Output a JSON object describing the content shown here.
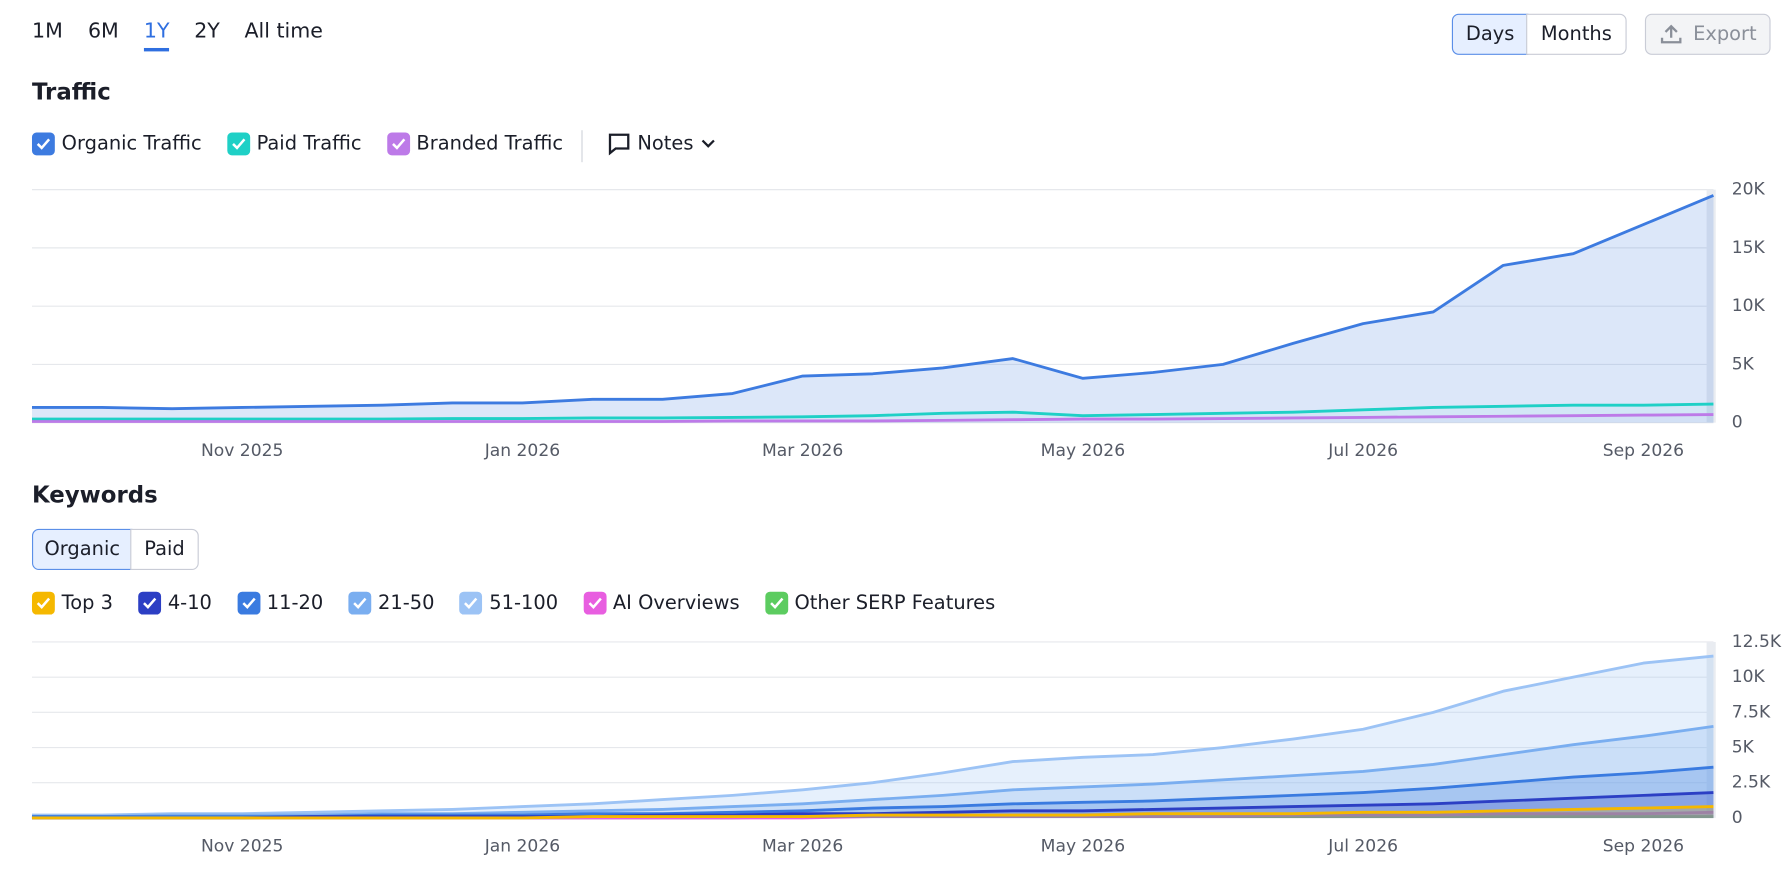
{
  "range_tabs": [
    "1M",
    "6M",
    "1Y",
    "2Y",
    "All time"
  ],
  "active_range_index": 2,
  "granularity": [
    "Days",
    "Months"
  ],
  "active_granularity_index": 0,
  "export": "Export",
  "traffic": {
    "title": "Traffic",
    "notes": "Notes"
  },
  "keywords": {
    "title": "Keywords",
    "tabs": [
      "Organic",
      "Paid"
    ],
    "active_tab_index": 0
  },
  "chart_data": [
    {
      "type": "area",
      "categories": [
        null,
        null,
        null,
        "Nov 2025",
        null,
        null,
        null,
        "Jan 2026",
        null,
        null,
        null,
        "Mar 2026",
        null,
        null,
        null,
        "May 2026",
        null,
        null,
        null,
        "Jul 2026",
        null,
        null,
        null,
        "Sep 2026",
        null
      ],
      "series": [
        {
          "name": "Organic Traffic",
          "color": "#3d7be0",
          "values": [
            1300,
            1300,
            1200,
            1300,
            1400,
            1500,
            1700,
            1700,
            2000,
            2000,
            2500,
            4000,
            4200,
            4700,
            5500,
            3800,
            4300,
            5000,
            6800,
            8500,
            9500,
            13500,
            14500,
            17000,
            19500
          ]
        },
        {
          "name": "Paid Traffic",
          "color": "#1fd0c6",
          "values": [
            300,
            300,
            300,
            300,
            300,
            300,
            350,
            350,
            400,
            400,
            450,
            500,
            600,
            800,
            900,
            600,
            700,
            800,
            900,
            1100,
            1300,
            1400,
            1500,
            1500,
            1600
          ]
        },
        {
          "name": "Branded Traffic",
          "color": "#bd7ae8",
          "values": [
            100,
            100,
            100,
            100,
            100,
            100,
            100,
            100,
            100,
            100,
            150,
            150,
            150,
            200,
            250,
            300,
            300,
            350,
            400,
            450,
            500,
            550,
            600,
            650,
            700
          ]
        }
      ],
      "ylim": [
        0,
        20000
      ],
      "yticks": [
        0,
        {
          "value": 5000,
          "label": "5K"
        },
        {
          "value": 10000,
          "label": "10K"
        },
        {
          "value": 15000,
          "label": "15K"
        },
        {
          "value": 20000,
          "label": "20K"
        }
      ],
      "grid": true
    },
    {
      "type": "area",
      "categories": [
        null,
        null,
        null,
        "Nov 2025",
        null,
        null,
        null,
        "Jan 2026",
        null,
        null,
        null,
        "Mar 2026",
        null,
        null,
        null,
        "May 2026",
        null,
        null,
        null,
        "Jul 2026",
        null,
        null,
        null,
        "Sep 2026",
        null
      ],
      "series": [
        {
          "name": "Top 3",
          "color": "#f5b800",
          "values": [
            0,
            0,
            0,
            0,
            0,
            0,
            0,
            0,
            100,
            100,
            100,
            100,
            200,
            200,
            200,
            200,
            300,
            300,
            300,
            400,
            400,
            500,
            600,
            700,
            800
          ]
        },
        {
          "name": "4-10",
          "color": "#2c3fc4",
          "values": [
            0,
            0,
            0,
            0,
            100,
            100,
            100,
            100,
            100,
            200,
            200,
            300,
            300,
            400,
            500,
            500,
            600,
            700,
            800,
            900,
            1000,
            1200,
            1400,
            1600,
            1800
          ]
        },
        {
          "name": "11-20",
          "color": "#3a7be0",
          "values": [
            100,
            100,
            100,
            100,
            100,
            200,
            200,
            200,
            300,
            300,
            400,
            500,
            700,
            800,
            1000,
            1100,
            1200,
            1400,
            1600,
            1800,
            2100,
            2500,
            2900,
            3200,
            3600
          ]
        },
        {
          "name": "21-50",
          "color": "#7aaef0",
          "values": [
            100,
            100,
            200,
            200,
            200,
            300,
            300,
            400,
            500,
            600,
            800,
            1000,
            1300,
            1600,
            2000,
            2200,
            2400,
            2700,
            3000,
            3300,
            3800,
            4500,
            5200,
            5800,
            6500
          ]
        },
        {
          "name": "51-100",
          "color": "#9cc3f5",
          "values": [
            200,
            200,
            300,
            300,
            400,
            500,
            600,
            800,
            1000,
            1300,
            1600,
            2000,
            2500,
            3200,
            4000,
            4300,
            4500,
            5000,
            5600,
            6300,
            7500,
            9000,
            10000,
            11000,
            11500
          ]
        },
        {
          "name": "AI Overviews",
          "color": "#e85ee0",
          "values": [
            0,
            0,
            0,
            0,
            0,
            0,
            0,
            0,
            0,
            0,
            0,
            0,
            100,
            100,
            100,
            100,
            100,
            100,
            200,
            200,
            200,
            300,
            300,
            300,
            400
          ]
        },
        {
          "name": "Other SERP Features",
          "color": "#5ccc60",
          "values": [
            0,
            0,
            0,
            0,
            0,
            0,
            0,
            0,
            0,
            0,
            0,
            100,
            100,
            100,
            100,
            100,
            100,
            100,
            100,
            100,
            100,
            100,
            100,
            100,
            100
          ]
        }
      ],
      "ylim": [
        0,
        12500
      ],
      "yticks": [
        0,
        {
          "value": 2500,
          "label": "2.5K"
        },
        {
          "value": 5000,
          "label": "5K"
        },
        {
          "value": 7500,
          "label": "7.5K"
        },
        {
          "value": 10000,
          "label": "10K"
        },
        {
          "value": 12500,
          "label": "12.5K"
        }
      ],
      "grid": true
    }
  ]
}
